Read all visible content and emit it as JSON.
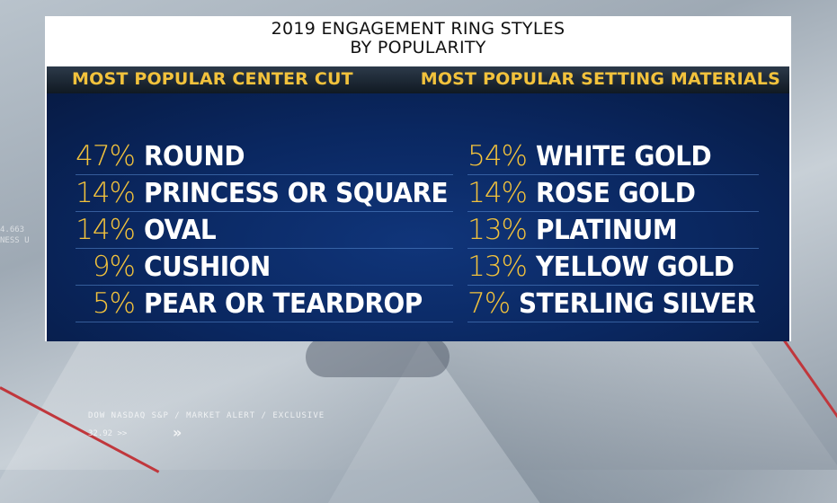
{
  "title_line1": "2019 ENGAGEMENT RING STYLES",
  "title_line2": "BY POPULARITY",
  "left_header": "MOST POPULAR CENTER CUT",
  "right_header": "MOST POPULAR SETTING MATERIALS",
  "center_cut": [
    {
      "pct": "47%",
      "label": "ROUND"
    },
    {
      "pct": "14%",
      "label": "PRINCESS OR SQUARE"
    },
    {
      "pct": "14%",
      "label": "OVAL"
    },
    {
      "pct": "9%",
      "label": "CUSHION"
    },
    {
      "pct": "5%",
      "label": "PEAR OR TEARDROP"
    }
  ],
  "setting_materials": [
    {
      "pct": "54%",
      "label": "WHITE GOLD"
    },
    {
      "pct": "14%",
      "label": "ROSE GOLD"
    },
    {
      "pct": "13%",
      "label": "PLATINUM"
    },
    {
      "pct": "13%",
      "label": "YELLOW GOLD"
    },
    {
      "pct": "7%",
      "label": "STERLING SILVER"
    }
  ],
  "background": {
    "ticker_line1": "DOW NASDAQ S&P  /  MARKET ALERT  /  EXCLUSIVE",
    "ticker_line2": "32.92 >>",
    "side_line1": "4.663",
    "side_line2": "NESS U"
  },
  "colors": {
    "accent_gold": "#f2c23c",
    "panel_blue": "#0a2760",
    "header_dark": "#101922"
  }
}
